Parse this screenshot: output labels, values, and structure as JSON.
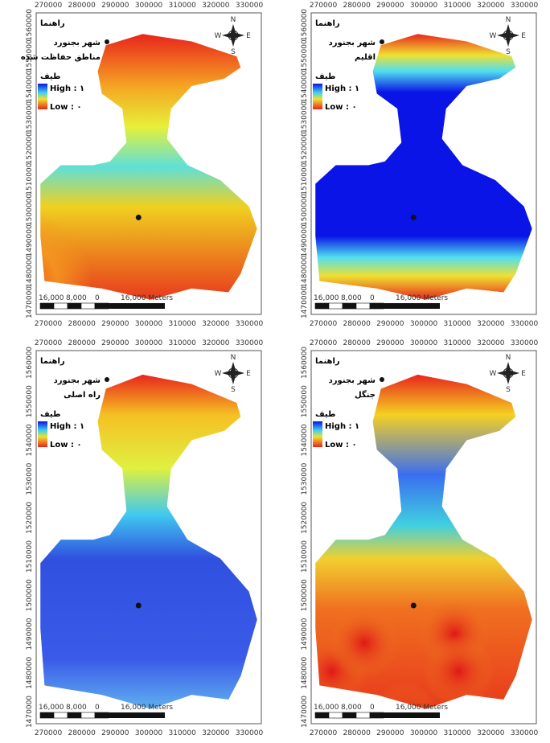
{
  "x_ticks": [
    "270000",
    "280000",
    "290000",
    "300000",
    "310000",
    "320000",
    "330000"
  ],
  "y_ticks": [
    "1470000",
    "1480000",
    "1490000",
    "1500000",
    "1510000",
    "1520000",
    "1530000",
    "1540000",
    "1550000",
    "1560000"
  ],
  "legend": {
    "title": "راهنما",
    "city": "شهر بجنورد",
    "ramp": "طيف",
    "high": "High : ۱",
    "low": "Low : ۰"
  },
  "scale_bar": {
    "labels": [
      "16,000",
      "8,000",
      "0",
      "16,000 Meters"
    ]
  },
  "north": {
    "n": "N",
    "e": "E",
    "s": "S",
    "w": "W"
  },
  "panels": [
    {
      "layer": "مناطق حفاظت شده"
    },
    {
      "layer": "اقليم"
    },
    {
      "layer": "راه اصلی"
    },
    {
      "layer": "جنگل"
    }
  ]
}
